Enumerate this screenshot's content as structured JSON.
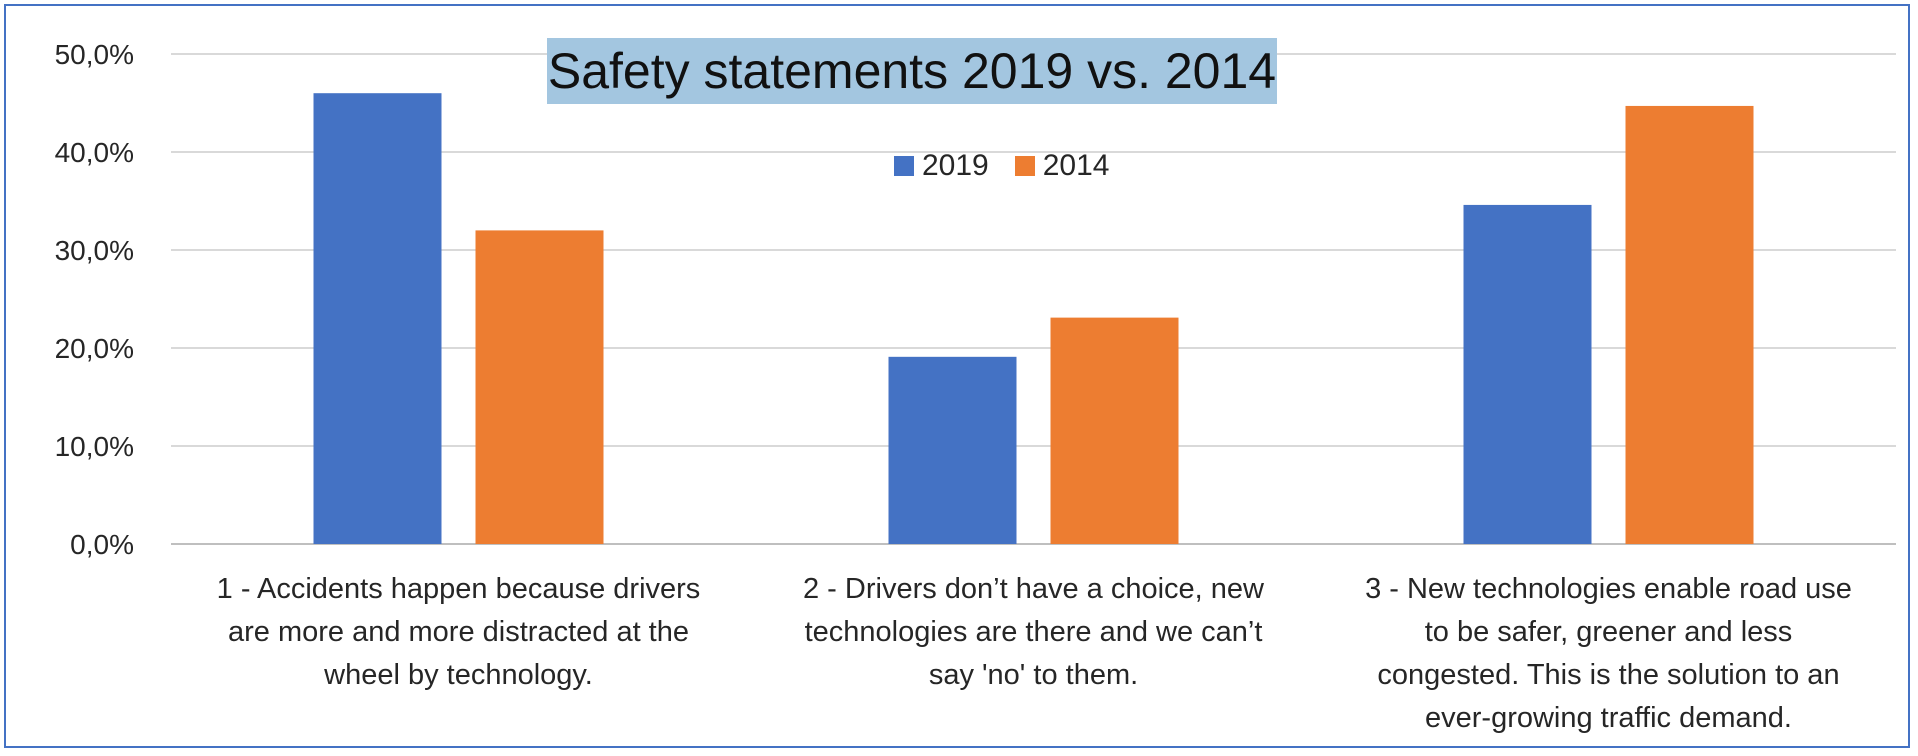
{
  "chart_data": {
    "type": "bar",
    "title": "Safety statements 2019 vs. 2014",
    "categories": [
      "1 - Accidents happen because drivers are more and more distracted at the wheel by technology.",
      "2 - Drivers don’t have a choice, new technologies are there and we can’t say 'no' to them.",
      "3 - New technologies enable road use to be safer, greener and less congested. This is the solution to an ever-growing traffic demand."
    ],
    "category_lines": [
      [
        "1 - Accidents happen because drivers",
        "are more and more distracted at the",
        "wheel by technology."
      ],
      [
        "2 - Drivers don’t have a choice, new",
        "technologies are there and we can’t",
        "say 'no' to them."
      ],
      [
        "3 - New technologies enable road use",
        "to be safer, greener and less",
        "congested. This is the solution to an",
        "ever-growing traffic demand."
      ]
    ],
    "series": [
      {
        "name": "2019",
        "color": "#4472c4",
        "values": [
          46.0,
          19.1,
          34.6
        ]
      },
      {
        "name": "2014",
        "color": "#ed7d31",
        "values": [
          32.0,
          23.1,
          44.7
        ]
      }
    ],
    "ylim": [
      0,
      50
    ],
    "yticks": [
      0,
      10,
      20,
      30,
      40,
      50
    ],
    "ytick_labels": [
      "0,0%",
      "10,0%",
      "20,0%",
      "30,0%",
      "40,0%",
      "50,0%"
    ],
    "xlabel": "",
    "ylabel": "",
    "grid": true,
    "legend_position": "top-center",
    "frame_color": "#4472c4",
    "title_background": "#a3c6e0"
  }
}
